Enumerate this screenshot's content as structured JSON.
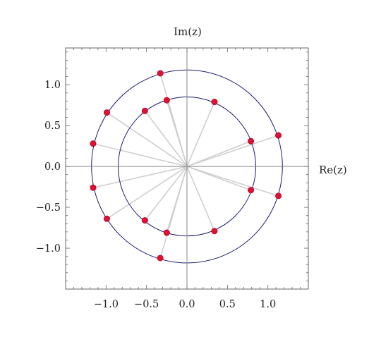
{
  "chart_data": {
    "type": "scatter",
    "title": "",
    "xlabel": "Re(z)",
    "ylabel": "Im(z)",
    "xlim": [
      -1.5,
      1.5
    ],
    "ylim": [
      -1.5,
      1.45
    ],
    "x_ticks": [
      -1.0,
      -0.5,
      0.0,
      0.5,
      1.0
    ],
    "x_tick_labels": [
      "−1.0",
      "−0.5",
      "0.0",
      "0.5",
      "1.0"
    ],
    "y_ticks": [
      1.0,
      0.5,
      0.0,
      -0.5,
      -1.0
    ],
    "y_tick_labels": [
      "1.0",
      "0.5",
      "0.0",
      "−0.5",
      "−1.0"
    ],
    "circles": [
      {
        "name": "",
        "radius": 0.85
      },
      {
        "name": "",
        "radius": 1.18
      }
    ],
    "series": [
      {
        "name": "",
        "x": [
          0.34,
          0.79,
          0.79,
          0.34,
          -0.25,
          -0.52,
          -0.52,
          -0.25,
          -0.33,
          -0.99,
          -1.16,
          -1.16,
          -0.99,
          -0.33,
          1.13,
          1.13
        ],
        "y": [
          0.79,
          0.31,
          -0.29,
          -0.79,
          0.81,
          0.68,
          -0.66,
          -0.81,
          1.14,
          0.66,
          0.28,
          -0.26,
          -0.64,
          -1.12,
          0.38,
          -0.36
        ]
      }
    ],
    "rays_from_origin": true,
    "grid": false,
    "colors": {
      "point": "#dd1133",
      "ray": "#cfcfcf",
      "circle": "#1a1a6e",
      "axis": "#888888",
      "frame": "#666666"
    }
  }
}
